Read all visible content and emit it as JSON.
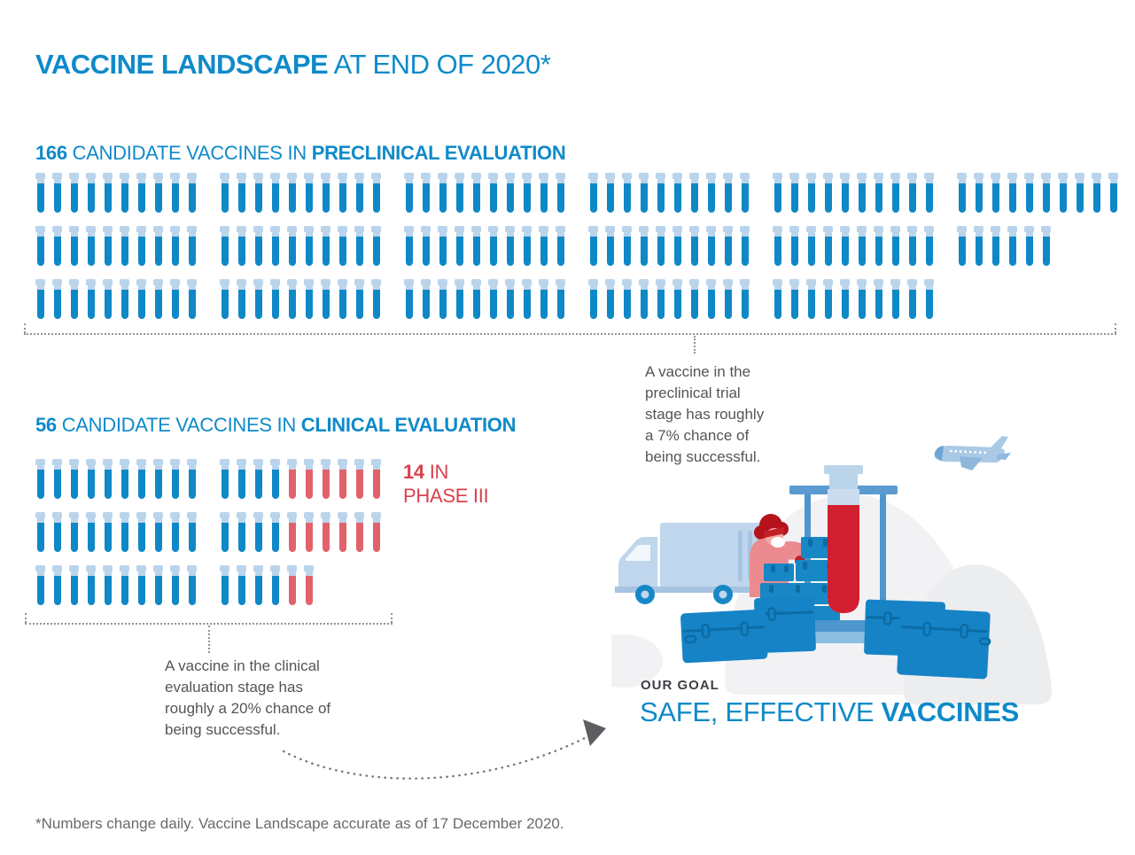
{
  "title": {
    "bold": "VACCINE LANDSCAPE",
    "light": "AT END OF 2020*"
  },
  "preclinical": {
    "count": "166",
    "label_mid": "CANDIDATE VACCINES IN",
    "label_bold": "PRECLINICAL EVALUATION",
    "rows": [
      [
        {
          "blue": 10
        },
        {
          "blue": 10
        },
        {
          "blue": 10
        },
        {
          "blue": 10
        },
        {
          "blue": 10
        },
        {
          "blue": 10
        }
      ],
      [
        {
          "blue": 10
        },
        {
          "blue": 10
        },
        {
          "blue": 10
        },
        {
          "blue": 10
        },
        {
          "blue": 10
        },
        {
          "blue": 6
        }
      ],
      [
        {
          "blue": 10
        },
        {
          "blue": 10
        },
        {
          "blue": 10
        },
        {
          "blue": 10
        },
        {
          "blue": 10
        }
      ]
    ],
    "annotation": "A vaccine in the\npreclinical trial\nstage has roughly\na 7% chance of\nbeing successful."
  },
  "clinical": {
    "count": "56",
    "label_mid": "CANDIDATE VACCINES IN",
    "label_bold": "CLINICAL EVALUATION",
    "rows": [
      [
        {
          "blue": 10
        },
        {
          "blue": 4,
          "red": 6
        }
      ],
      [
        {
          "blue": 10
        },
        {
          "blue": 4,
          "red": 6
        }
      ],
      [
        {
          "blue": 10
        },
        {
          "blue": 4,
          "red": 2
        }
      ]
    ],
    "phase3": {
      "count": "14",
      "suffix": "IN",
      "line2": "PHASE III"
    },
    "annotation": "A vaccine in the clinical\nevaluation stage has\nroughly a 20% chance of\nbeing successful."
  },
  "goal": {
    "kicker": "OUR GOAL",
    "normal": "SAFE, EFFECTIVE",
    "bold": "VACCINES"
  },
  "footnote": "*Numbers change daily. Vaccine Landscape accurate as of 17 December 2020.",
  "colors": {
    "brand_blue": "#0F8AC9",
    "tube_blue": "#0F88C7",
    "tube_cap": "#BAD4EB",
    "tube_red": "#E2626C",
    "red_text": "#D9414E",
    "big_tube_red": "#D11F2F",
    "note_gray": "#54555A",
    "foot_gray": "#6A6A6E",
    "goal_dark": "#3E3F44",
    "dash_gray": "#949494",
    "illustration_light_blue": "#BFD6EC",
    "illustration_mid_blue": "#5B9BD0",
    "illustration_blue": "#1787C5",
    "illustration_dark_blue": "#0C6CA4",
    "illustration_gray": "#F2F2F4"
  },
  "icons": {
    "test-tube-icon": "pictogram unit = 1 candidate vaccine",
    "airplane-icon": "plane flying top right",
    "truck-icon": "delivery truck",
    "worker-icon": "masked worker stacking crates",
    "crate-stack-icon": "stack of small vaccine crates",
    "tube-stand-icon": "stand holding giant test tube",
    "giant-test-tube-icon": "large test tube with red liquid",
    "cooler-trunk-icon": "blue shipping cooler trunk",
    "arrow-icon": "dotted curved arrow pointing to goal"
  },
  "chart_data": {
    "type": "pictogram",
    "title": "Vaccine Landscape at end of 2020",
    "unit": "1 test tube = 1 candidate vaccine",
    "categories": [
      "Preclinical evaluation",
      "Clinical evaluation",
      "Phase III (subset of clinical)"
    ],
    "values": [
      166,
      56,
      14
    ],
    "series": [
      {
        "name": "Preclinical candidate vaccines (blue tubes)",
        "values": [
          166
        ]
      },
      {
        "name": "Clinical candidate vaccines not in Phase III (blue tubes)",
        "values": [
          42
        ]
      },
      {
        "name": "Clinical candidate vaccines in Phase III (red tubes)",
        "values": [
          14
        ]
      }
    ],
    "annotations": [
      "A vaccine in the preclinical trial stage has roughly a 7% chance of being successful.",
      "A vaccine in the clinical evaluation stage has roughly a 20% chance of being successful.",
      "*Numbers change daily. Vaccine Landscape accurate as of 17 December 2020."
    ],
    "layout": "rows of 10-tube racks; preclinical rows 60/56/50, clinical rows 20/20/16 with last 6/6/2 tubes red"
  }
}
